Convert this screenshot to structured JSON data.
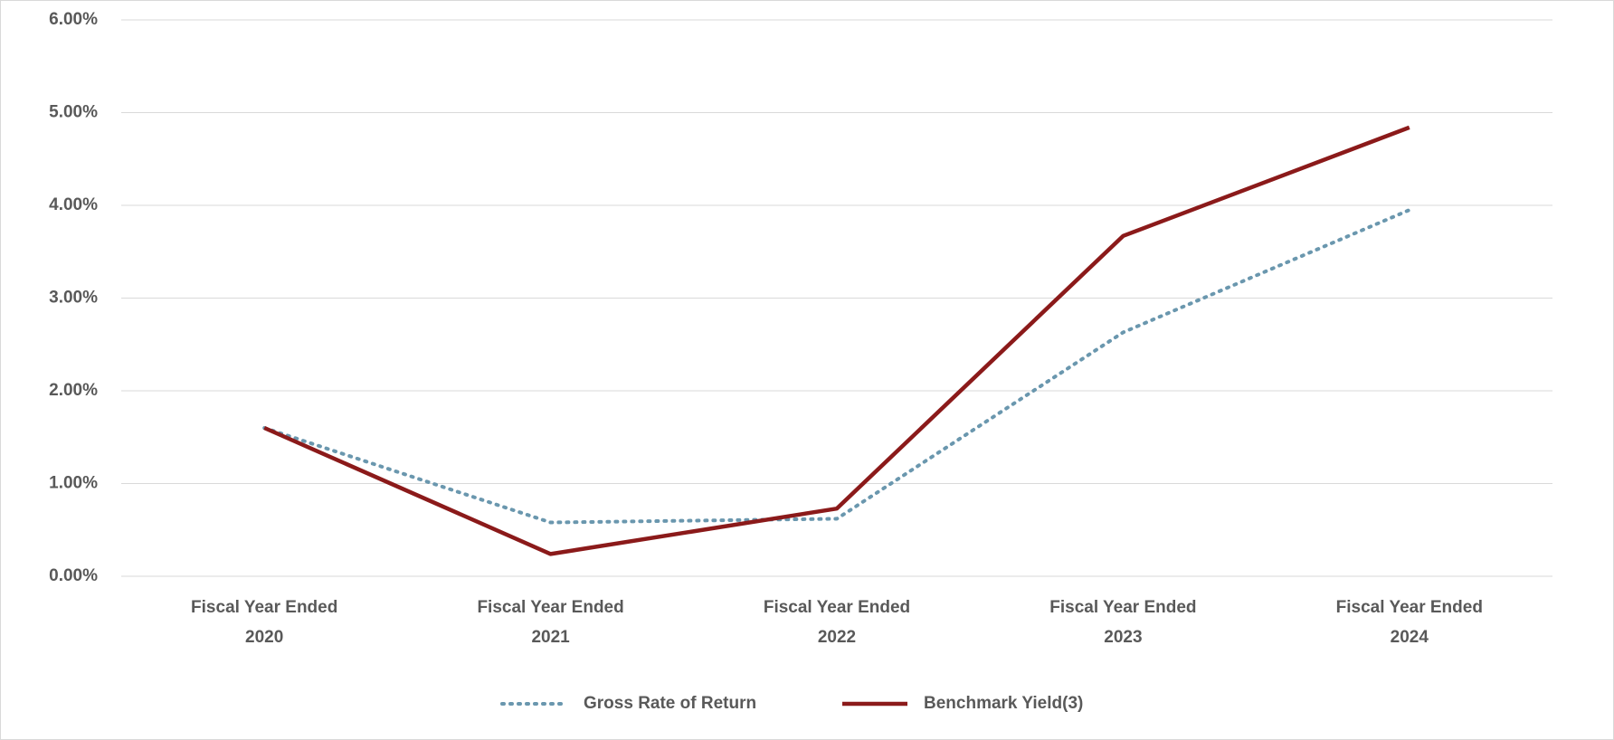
{
  "chart_data": {
    "type": "line",
    "categories": [
      "Fiscal Year Ended 2020",
      "Fiscal Year Ended 2021",
      "Fiscal Year Ended 2022",
      "Fiscal Year Ended 2023",
      "Fiscal Year Ended 2024"
    ],
    "series": [
      {
        "name": "Gross Rate of Return",
        "color": "#6a97ae",
        "dash": "dotted",
        "values": [
          1.6,
          0.58,
          0.62,
          2.63,
          3.95
        ]
      },
      {
        "name": "Benchmark Yield(3)",
        "color": "#8b1a1a",
        "dash": "solid",
        "values": [
          1.6,
          0.24,
          0.73,
          3.67,
          4.84
        ]
      }
    ],
    "ylim": [
      0,
      6
    ],
    "yticks": [
      {
        "value": 0,
        "label": "0.00%"
      },
      {
        "value": 1,
        "label": "1.00%"
      },
      {
        "value": 2,
        "label": "2.00%"
      },
      {
        "value": 3,
        "label": "3.00%"
      },
      {
        "value": 4,
        "label": "4.00%"
      },
      {
        "value": 5,
        "label": "5.00%"
      },
      {
        "value": 6,
        "label": "6.00%"
      }
    ],
    "grid": true,
    "legend": "bottom"
  }
}
